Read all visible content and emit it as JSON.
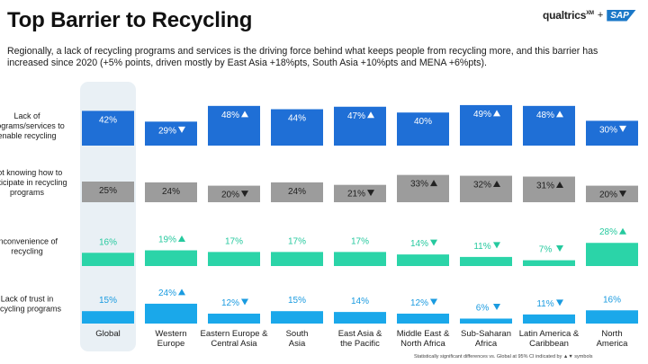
{
  "title": "Top Barrier to Recycling",
  "subtitle": "Regionally, a lack of recycling programs and services is the driving force behind what keeps people from recycling more, and this barrier has increased since 2020 (+5% points, driven mostly by East Asia +18%pts, South Asia +10%pts and MENA +6%pts).",
  "logo": {
    "brand": "qualtrics",
    "superscript": "XM",
    "plus": "+",
    "partner": "SAP"
  },
  "footnote": "Statistically significant differences vs. Global at 95% CI indicated by ▲▼ symbols",
  "chart_data": {
    "type": "bar",
    "categories": [
      [
        "Global"
      ],
      [
        "Western",
        "Europe"
      ],
      [
        "Eastern Europe &",
        "Central Asia"
      ],
      [
        "South",
        "Asia"
      ],
      [
        "East Asia &",
        "the Pacific"
      ],
      [
        "Middle East &",
        "North Africa"
      ],
      [
        "Sub-Saharan",
        "Africa"
      ],
      [
        "Latin America &",
        "Caribbean"
      ],
      [
        "North",
        "America"
      ]
    ],
    "highlight_category": "Global",
    "unit": "%",
    "rows": [
      {
        "label": [
          "Lack of",
          "programs/services to",
          "enable recycling"
        ],
        "color": "#1f6fd6",
        "label_color": "#ffffff",
        "label_position": "inside",
        "values": [
          42,
          29,
          48,
          44,
          47,
          40,
          49,
          48,
          30
        ],
        "sig": [
          "",
          "down",
          "up",
          "",
          "up",
          "",
          "up",
          "up",
          "down"
        ]
      },
      {
        "label": [
          "Not knowing how to",
          "participate in recycling",
          "programs"
        ],
        "color": "#9c9c9c",
        "label_color": "#222222",
        "label_position": "inside",
        "values": [
          25,
          24,
          20,
          24,
          21,
          33,
          32,
          31,
          20
        ],
        "sig": [
          "",
          "",
          "down",
          "",
          "down",
          "up",
          "up",
          "up",
          "down"
        ]
      },
      {
        "label": [
          "Inconvenience of",
          "recycling"
        ],
        "color": "#2bd4a8",
        "label_color": "#25c99e",
        "label_position": "above",
        "values": [
          16,
          19,
          17,
          17,
          17,
          14,
          11,
          7,
          28
        ],
        "sig": [
          "",
          "up",
          "",
          "",
          "",
          "down",
          "down",
          "down",
          "up"
        ]
      },
      {
        "label": [
          "Lack of trust in",
          "recycling programs"
        ],
        "color": "#1aa8ea",
        "label_color": "#1a9be0",
        "label_position": "above",
        "values": [
          15,
          24,
          12,
          15,
          14,
          12,
          6,
          11,
          16
        ],
        "sig": [
          "",
          "up",
          "down",
          "",
          "",
          "down",
          "down",
          "down",
          ""
        ]
      }
    ]
  }
}
